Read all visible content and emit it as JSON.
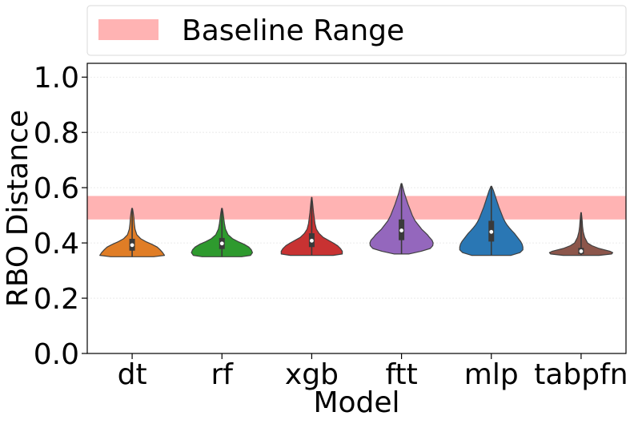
{
  "chart_data": {
    "type": "violin",
    "categories": [
      "dt",
      "rf",
      "xgb",
      "ftt",
      "mlp",
      "tabpfn"
    ],
    "xlabel": "Model",
    "ylabel": "RBO Distance",
    "ylim": [
      0.0,
      1.05
    ],
    "yticks": [
      0.0,
      0.2,
      0.4,
      0.6,
      0.8,
      1.0
    ],
    "ytick_labels": [
      "0.0",
      "0.2",
      "0.4",
      "0.6",
      "0.8",
      "1.0"
    ],
    "grid": "horizontal, faint",
    "legend": {
      "placement": "top, above plot",
      "entries": [
        {
          "label": "Baseline Range",
          "color": "#ffb3b3"
        }
      ]
    },
    "baseline_range": [
      0.485,
      0.57
    ],
    "series": [
      {
        "category": "dt",
        "color": "#e07d26",
        "min": 0.35,
        "max": 0.525,
        "q1": 0.372,
        "median": 0.392,
        "q3": 0.415,
        "profile": [
          [
            0.35,
            0.6
          ],
          [
            0.355,
            0.9
          ],
          [
            0.365,
            0.85
          ],
          [
            0.375,
            0.78
          ],
          [
            0.385,
            0.7
          ],
          [
            0.395,
            0.55
          ],
          [
            0.405,
            0.38
          ],
          [
            0.415,
            0.24
          ],
          [
            0.43,
            0.13
          ],
          [
            0.45,
            0.08
          ],
          [
            0.47,
            0.06
          ],
          [
            0.49,
            0.05
          ],
          [
            0.51,
            0.03
          ],
          [
            0.525,
            0.01
          ]
        ]
      },
      {
        "category": "rf",
        "color": "#2e9a2e",
        "min": 0.35,
        "max": 0.525,
        "q1": 0.378,
        "median": 0.398,
        "q3": 0.418,
        "profile": [
          [
            0.35,
            0.55
          ],
          [
            0.355,
            0.8
          ],
          [
            0.365,
            0.85
          ],
          [
            0.375,
            0.82
          ],
          [
            0.385,
            0.75
          ],
          [
            0.395,
            0.62
          ],
          [
            0.405,
            0.45
          ],
          [
            0.415,
            0.3
          ],
          [
            0.43,
            0.17
          ],
          [
            0.45,
            0.1
          ],
          [
            0.47,
            0.07
          ],
          [
            0.49,
            0.05
          ],
          [
            0.51,
            0.03
          ],
          [
            0.525,
            0.01
          ]
        ]
      },
      {
        "category": "xgb",
        "color": "#c83232",
        "min": 0.355,
        "max": 0.565,
        "q1": 0.385,
        "median": 0.408,
        "q3": 0.435,
        "profile": [
          [
            0.355,
            0.6
          ],
          [
            0.36,
            0.85
          ],
          [
            0.37,
            0.85
          ],
          [
            0.38,
            0.8
          ],
          [
            0.39,
            0.72
          ],
          [
            0.4,
            0.6
          ],
          [
            0.41,
            0.46
          ],
          [
            0.42,
            0.32
          ],
          [
            0.435,
            0.2
          ],
          [
            0.45,
            0.13
          ],
          [
            0.47,
            0.09
          ],
          [
            0.49,
            0.07
          ],
          [
            0.51,
            0.05
          ],
          [
            0.53,
            0.035
          ],
          [
            0.55,
            0.02
          ],
          [
            0.565,
            0.005
          ]
        ]
      },
      {
        "category": "ftt",
        "color": "#9467bd",
        "min": 0.36,
        "max": 0.615,
        "q1": 0.41,
        "median": 0.445,
        "q3": 0.485,
        "profile": [
          [
            0.36,
            0.2
          ],
          [
            0.37,
            0.55
          ],
          [
            0.38,
            0.8
          ],
          [
            0.39,
            0.87
          ],
          [
            0.4,
            0.88
          ],
          [
            0.41,
            0.85
          ],
          [
            0.42,
            0.78
          ],
          [
            0.43,
            0.72
          ],
          [
            0.44,
            0.64
          ],
          [
            0.45,
            0.56
          ],
          [
            0.46,
            0.5
          ],
          [
            0.47,
            0.44
          ],
          [
            0.48,
            0.38
          ],
          [
            0.49,
            0.34
          ],
          [
            0.5,
            0.3
          ],
          [
            0.52,
            0.24
          ],
          [
            0.54,
            0.18
          ],
          [
            0.56,
            0.13
          ],
          [
            0.58,
            0.08
          ],
          [
            0.6,
            0.04
          ],
          [
            0.615,
            0.01
          ]
        ]
      },
      {
        "category": "mlp",
        "color": "#2a77b4",
        "min": 0.355,
        "max": 0.605,
        "q1": 0.405,
        "median": 0.44,
        "q3": 0.48,
        "profile": [
          [
            0.355,
            0.55
          ],
          [
            0.365,
            0.8
          ],
          [
            0.375,
            0.88
          ],
          [
            0.385,
            0.88
          ],
          [
            0.395,
            0.86
          ],
          [
            0.405,
            0.82
          ],
          [
            0.415,
            0.76
          ],
          [
            0.425,
            0.7
          ],
          [
            0.435,
            0.64
          ],
          [
            0.445,
            0.57
          ],
          [
            0.455,
            0.5
          ],
          [
            0.465,
            0.44
          ],
          [
            0.475,
            0.39
          ],
          [
            0.49,
            0.33
          ],
          [
            0.51,
            0.27
          ],
          [
            0.53,
            0.21
          ],
          [
            0.55,
            0.16
          ],
          [
            0.57,
            0.11
          ],
          [
            0.59,
            0.06
          ],
          [
            0.605,
            0.01
          ]
        ]
      },
      {
        "category": "tabpfn",
        "color": "#8c564b",
        "min": 0.355,
        "max": 0.51,
        "q1": 0.36,
        "median": 0.37,
        "q3": 0.382,
        "profile": [
          [
            0.355,
            0.5
          ],
          [
            0.36,
            0.85
          ],
          [
            0.365,
            0.88
          ],
          [
            0.37,
            0.8
          ],
          [
            0.375,
            0.65
          ],
          [
            0.38,
            0.5
          ],
          [
            0.39,
            0.3
          ],
          [
            0.4,
            0.18
          ],
          [
            0.42,
            0.1
          ],
          [
            0.44,
            0.06
          ],
          [
            0.46,
            0.04
          ],
          [
            0.48,
            0.03
          ],
          [
            0.5,
            0.015
          ],
          [
            0.51,
            0.005
          ]
        ]
      }
    ]
  }
}
